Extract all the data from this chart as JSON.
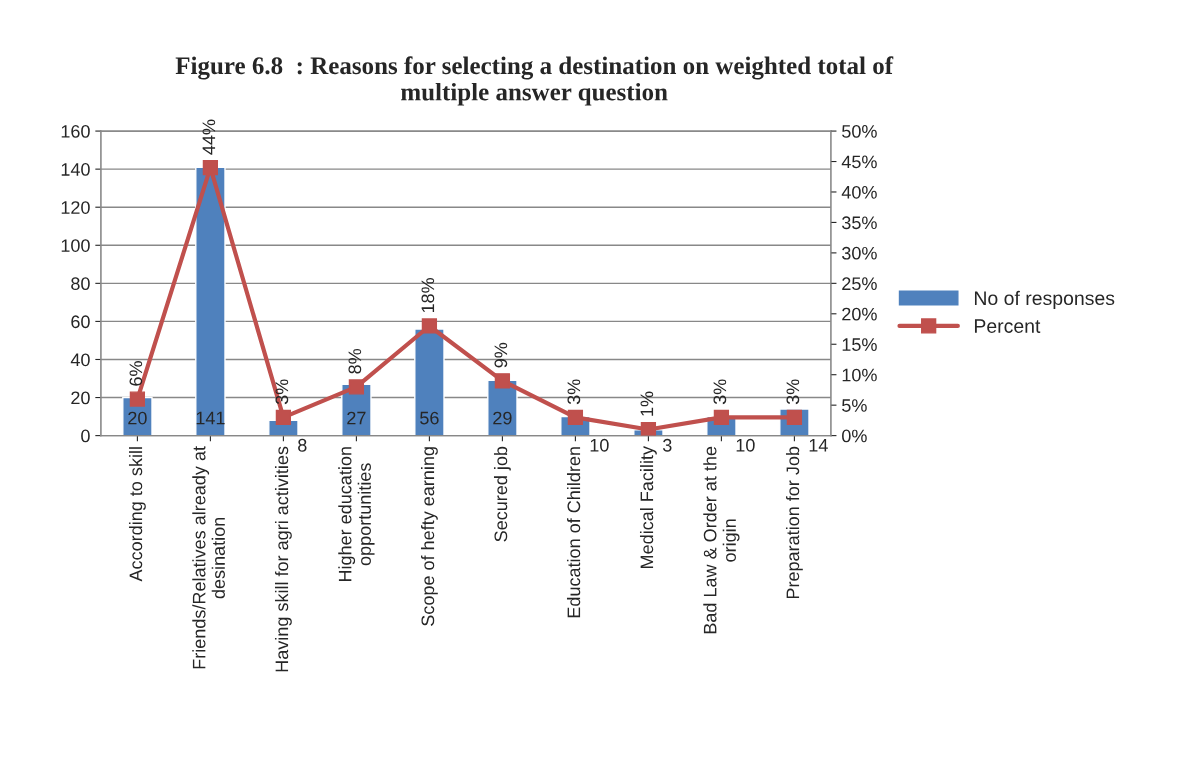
{
  "chart_data": {
    "type": "bar",
    "title": "Figure 6.8  : Reasons for selecting a destination on weighted total of\nmultiple answer question",
    "categories": [
      "According to skill",
      "Friends/Relatives already at\ndesination",
      "Having skill for agri activities",
      "Higher education\nopportunities",
      "Scope of hefty earning",
      "Secured job",
      "Education of Children",
      "Medical Facility",
      "Bad Law & Order at the\norigin",
      "Preparation for Job"
    ],
    "series": [
      {
        "name": "No of responses",
        "color": "#4f81bd",
        "values": [
          20,
          141,
          8,
          27,
          56,
          29,
          10,
          3,
          10,
          14
        ],
        "value_labels": [
          "20",
          "141",
          "8",
          "27",
          "56",
          "29",
          "10",
          "3",
          "10",
          "14"
        ]
      },
      {
        "name": "Percent",
        "type": "line",
        "axis": "y2",
        "color": "#c0504d",
        "marker": "square",
        "values": [
          6,
          44,
          3,
          8,
          18,
          9,
          3,
          1,
          3,
          3
        ],
        "value_labels": [
          "6%",
          "44%",
          "3%",
          "8%",
          "18%",
          "9%",
          "3%",
          "1%",
          "3%",
          "3%"
        ]
      }
    ],
    "ylim": [
      0,
      160
    ],
    "yticks": [
      0,
      20,
      40,
      60,
      80,
      100,
      120,
      140,
      160
    ],
    "y2lim": [
      0,
      50
    ],
    "y2ticks": [
      {
        "value": 0,
        "label": "0%"
      },
      {
        "value": 5,
        "label": "5%"
      },
      {
        "value": 10,
        "label": "10%"
      },
      {
        "value": 15,
        "label": "15%"
      },
      {
        "value": 20,
        "label": "20%"
      },
      {
        "value": 25,
        "label": "25%"
      },
      {
        "value": 30,
        "label": "30%"
      },
      {
        "value": 35,
        "label": "35%"
      },
      {
        "value": 40,
        "label": "40%"
      },
      {
        "value": 45,
        "label": "45%"
      },
      {
        "value": 50,
        "label": "50%"
      }
    ],
    "grid": "y",
    "legend": "right"
  }
}
